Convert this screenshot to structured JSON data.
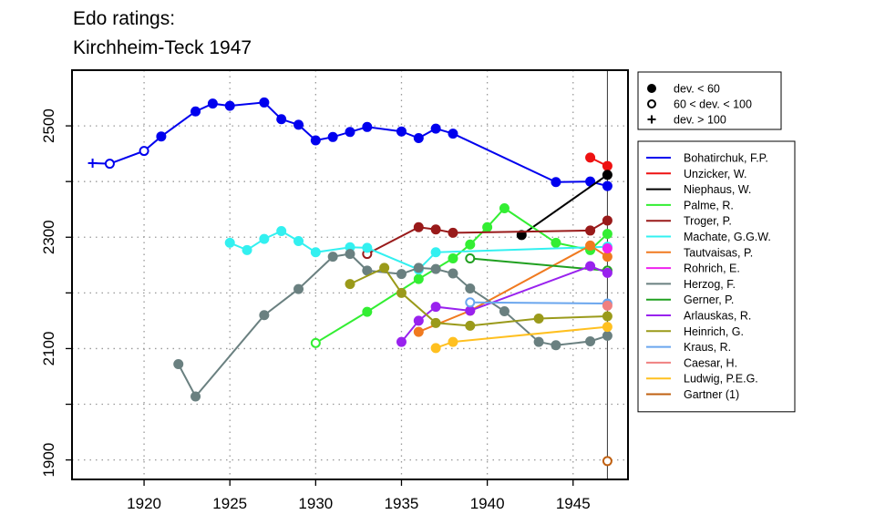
{
  "title_lines": [
    "Edo ratings:",
    "Kirchheim-Teck 1947"
  ],
  "chart_data": {
    "type": "line",
    "title": "Edo ratings: Kirchheim-Teck 1947",
    "xlabel": "",
    "ylabel": "",
    "xlim": [
      1915.8,
      1948.2
    ],
    "ylim": [
      1865,
      2600
    ],
    "xticks": [
      1920,
      1925,
      1930,
      1935,
      1940,
      1945
    ],
    "yticks": [
      1900,
      2100,
      2300,
      2500
    ],
    "ygrid": [
      1900,
      2000,
      2100,
      2200,
      2300,
      2400,
      2500
    ],
    "xgrid": [
      1920,
      1925,
      1930,
      1935,
      1940,
      1945
    ],
    "grid": true,
    "vline_x": 1947,
    "legend_placement": "right",
    "marker_legend": [
      {
        "label": "dev. < 60",
        "marker": "filled"
      },
      {
        "label": "60 < dev. < 100",
        "marker": "open"
      },
      {
        "label": "dev. > 100",
        "marker": "plus"
      }
    ],
    "series": [
      {
        "name": "Bohatirchuk, F.P.",
        "color": "#0000ee",
        "points": [
          [
            1917,
            2433,
            "plus"
          ],
          [
            1918,
            2432,
            "open"
          ],
          [
            1920,
            2455,
            "open"
          ],
          [
            1921,
            2481,
            "filled"
          ],
          [
            1923,
            2526,
            "filled"
          ],
          [
            1924,
            2540,
            "filled"
          ],
          [
            1925,
            2536,
            "filled"
          ],
          [
            1927,
            2542,
            "filled"
          ],
          [
            1928,
            2512,
            "filled"
          ],
          [
            1929,
            2502,
            "filled"
          ],
          [
            1930,
            2474,
            "filled"
          ],
          [
            1931,
            2480,
            "filled"
          ],
          [
            1932,
            2489,
            "filled"
          ],
          [
            1933,
            2498,
            "filled"
          ],
          [
            1935,
            2490,
            "filled"
          ],
          [
            1936,
            2478,
            "filled"
          ],
          [
            1937,
            2495,
            "filled"
          ],
          [
            1938,
            2486,
            "filled"
          ],
          [
            1944,
            2399,
            "filled"
          ],
          [
            1946,
            2400,
            "filled"
          ],
          [
            1947,
            2392,
            "filled"
          ]
        ]
      },
      {
        "name": "Unzicker, W.",
        "color": "#ee1111",
        "points": [
          [
            1946,
            2443,
            "filled"
          ],
          [
            1947,
            2428,
            "filled"
          ]
        ]
      },
      {
        "name": "Niephaus, W.",
        "color": "#000000",
        "points": [
          [
            1942,
            2304,
            "filled"
          ],
          [
            1947,
            2412,
            "filled"
          ]
        ]
      },
      {
        "name": "Palme, R.",
        "color": "#33ee33",
        "points": [
          [
            1930,
            2110,
            "open"
          ],
          [
            1933,
            2166,
            "filled"
          ],
          [
            1936,
            2225,
            "filled"
          ],
          [
            1938,
            2262,
            "filled"
          ],
          [
            1939,
            2287,
            "filled"
          ],
          [
            1940,
            2318,
            "filled"
          ],
          [
            1941,
            2352,
            "filled"
          ],
          [
            1944,
            2290,
            "filled"
          ],
          [
            1946,
            2277,
            "filled"
          ],
          [
            1947,
            2306,
            "filled"
          ]
        ]
      },
      {
        "name": "Troger, P.",
        "color": "#991a1a",
        "points": [
          [
            1933,
            2270,
            "open"
          ],
          [
            1936,
            2318,
            "filled"
          ],
          [
            1937,
            2314,
            "filled"
          ],
          [
            1938,
            2308,
            "filled"
          ],
          [
            1946,
            2312,
            "filled"
          ],
          [
            1947,
            2330,
            "filled"
          ]
        ]
      },
      {
        "name": "Machate, G.G.W.",
        "color": "#33f0f0",
        "points": [
          [
            1925,
            2290,
            "filled"
          ],
          [
            1926,
            2277,
            "filled"
          ],
          [
            1927,
            2297,
            "filled"
          ],
          [
            1928,
            2311,
            "filled"
          ],
          [
            1929,
            2293,
            "filled"
          ],
          [
            1930,
            2273,
            "filled"
          ],
          [
            1932,
            2282,
            "filled"
          ],
          [
            1933,
            2281,
            "filled"
          ],
          [
            1936,
            2242,
            "filled"
          ],
          [
            1937,
            2273,
            "filled"
          ],
          [
            1947,
            2283,
            "filled"
          ]
        ]
      },
      {
        "name": "Tautvaisas, P.",
        "color": "#f07a20",
        "points": [
          [
            1936,
            2130,
            "filled"
          ],
          [
            1939,
            2168,
            "filled"
          ],
          [
            1946,
            2285,
            "filled"
          ],
          [
            1947,
            2265,
            "filled"
          ]
        ]
      },
      {
        "name": "Rohrich, E.",
        "color": "#ee22ee",
        "points": [
          [
            1947,
            2280,
            "filled"
          ]
        ]
      },
      {
        "name": "Herzog, F.",
        "color": "#6a8080",
        "points": [
          [
            1922,
            2072,
            "filled"
          ],
          [
            1923,
            2014,
            "filled"
          ],
          [
            1927,
            2160,
            "filled"
          ],
          [
            1929,
            2207,
            "filled"
          ],
          [
            1931,
            2265,
            "filled"
          ],
          [
            1932,
            2270,
            "filled"
          ],
          [
            1933,
            2240,
            "filled"
          ],
          [
            1935,
            2234,
            "filled"
          ],
          [
            1936,
            2245,
            "filled"
          ],
          [
            1937,
            2243,
            "filled"
          ],
          [
            1938,
            2235,
            "filled"
          ],
          [
            1939,
            2208,
            "filled"
          ],
          [
            1941,
            2167,
            "filled"
          ],
          [
            1943,
            2112,
            "filled"
          ],
          [
            1944,
            2106,
            "filled"
          ],
          [
            1946,
            2113,
            "filled"
          ],
          [
            1947,
            2123,
            "filled"
          ]
        ]
      },
      {
        "name": "Gerner, P.",
        "color": "#20a020",
        "points": [
          [
            1939,
            2262,
            "open"
          ],
          [
            1947,
            2240,
            "open"
          ]
        ]
      },
      {
        "name": "Arlauskas, R.",
        "color": "#9922ee",
        "points": [
          [
            1935,
            2112,
            "filled"
          ],
          [
            1936,
            2150,
            "filled"
          ],
          [
            1937,
            2175,
            "filled"
          ],
          [
            1939,
            2168,
            "filled"
          ],
          [
            1946,
            2248,
            "filled"
          ],
          [
            1947,
            2236,
            "filled"
          ]
        ]
      },
      {
        "name": "Heinrich, G.",
        "color": "#9a9a1a",
        "points": [
          [
            1932,
            2216,
            "filled"
          ],
          [
            1934,
            2245,
            "filled"
          ],
          [
            1935,
            2200,
            "filled"
          ],
          [
            1937,
            2146,
            "filled"
          ],
          [
            1939,
            2141,
            "filled"
          ],
          [
            1943,
            2154,
            "filled"
          ],
          [
            1947,
            2158,
            "filled"
          ]
        ]
      },
      {
        "name": "Kraus, R.",
        "color": "#6aa6ee",
        "points": [
          [
            1939,
            2183,
            "open"
          ],
          [
            1947,
            2181,
            "filled"
          ]
        ]
      },
      {
        "name": "Caesar, H.",
        "color": "#f08080",
        "points": [
          [
            1947,
            2177,
            "filled"
          ]
        ]
      },
      {
        "name": "Ludwig, P.E.G.",
        "color": "#ffc020",
        "points": [
          [
            1937,
            2101,
            "filled"
          ],
          [
            1938,
            2112,
            "filled"
          ],
          [
            1947,
            2139,
            "filled"
          ]
        ]
      },
      {
        "name": "Gartner (1)",
        "color": "#c06010",
        "points": [
          [
            1947,
            1898,
            "open"
          ]
        ]
      }
    ]
  }
}
